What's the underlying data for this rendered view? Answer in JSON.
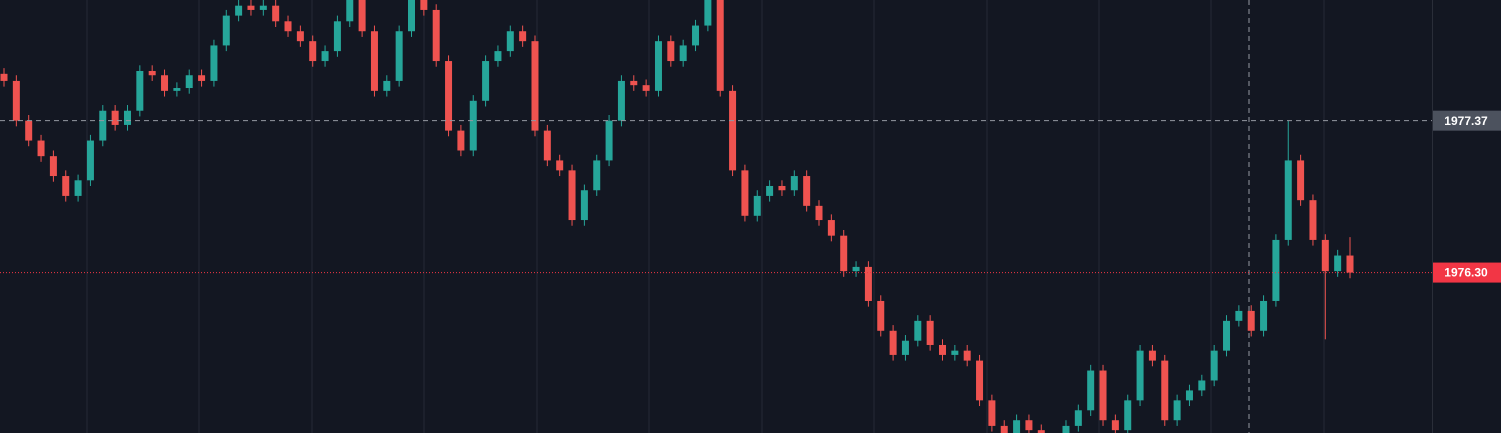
{
  "chart_data": {
    "type": "candlestick",
    "ylim": [
      1975.17,
      1978.22
    ],
    "up_color": "#26a69a",
    "down_color": "#ef5350",
    "crosshair_price": 1977.37,
    "last_price": {
      "value": 1976.3,
      "label": "1976.30"
    },
    "open": [
      1977.7,
      1977.65,
      1977.37,
      1977.23,
      1977.12,
      1976.98,
      1976.84,
      1976.95,
      1977.23,
      1977.44,
      1977.34,
      1977.44,
      1977.72,
      1977.69,
      1977.58,
      1977.6,
      1977.69,
      1977.65,
      1977.9,
      1978.11,
      1978.18,
      1978.15,
      1978.18,
      1978.07,
      1978.0,
      1977.93,
      1977.79,
      1977.86,
      1978.07,
      1978.25,
      1978.0,
      1977.58,
      1977.65,
      1978.0,
      1978.22,
      1978.15,
      1977.79,
      1977.3,
      1977.16,
      1977.51,
      1977.79,
      1977.86,
      1978.0,
      1977.93,
      1977.3,
      1977.09,
      1977.02,
      1976.67,
      1976.88,
      1977.09,
      1977.37,
      1977.65,
      1977.62,
      1977.58,
      1977.93,
      1977.79,
      1977.9,
      1978.04,
      1978.22,
      1977.58,
      1977.02,
      1976.7,
      1976.84,
      1976.91,
      1976.88,
      1976.98,
      1976.77,
      1976.67,
      1976.56,
      1976.31,
      1976.34,
      1976.1,
      1975.89,
      1975.72,
      1975.82,
      1975.96,
      1975.79,
      1975.72,
      1975.75,
      1975.68,
      1975.4,
      1975.22,
      1975.17,
      1975.26,
      1975.19,
      1975.05,
      1975.08,
      1975.22,
      1975.33,
      1975.61,
      1975.26,
      1975.19,
      1975.4,
      1975.75,
      1975.68,
      1975.26,
      1975.4,
      1975.47,
      1975.54,
      1975.75,
      1975.96,
      1976.03,
      1975.89,
      1976.1,
      1976.53,
      1977.09,
      1976.81,
      1976.53,
      1976.31,
      1976.42
    ],
    "high": [
      1977.74,
      1977.69,
      1977.41,
      1977.27,
      1977.16,
      1977.02,
      1976.99,
      1977.27,
      1977.48,
      1977.48,
      1977.48,
      1977.76,
      1977.76,
      1977.73,
      1977.64,
      1977.73,
      1977.73,
      1977.94,
      1978.15,
      1978.22,
      1978.22,
      1978.22,
      1978.22,
      1978.11,
      1978.04,
      1977.97,
      1977.9,
      1978.11,
      1978.29,
      1978.29,
      1978.04,
      1977.69,
      1978.04,
      1978.26,
      1978.26,
      1978.19,
      1977.83,
      1977.34,
      1977.55,
      1977.83,
      1977.9,
      1978.04,
      1978.04,
      1977.97,
      1977.34,
      1977.13,
      1977.06,
      1976.92,
      1977.13,
      1977.41,
      1977.69,
      1977.69,
      1977.66,
      1977.97,
      1977.97,
      1977.94,
      1978.08,
      1978.26,
      1978.26,
      1977.62,
      1977.06,
      1976.88,
      1976.95,
      1976.95,
      1977.02,
      1977.02,
      1976.81,
      1976.71,
      1976.6,
      1976.38,
      1976.38,
      1976.14,
      1975.93,
      1975.86,
      1976.0,
      1976.0,
      1975.83,
      1975.79,
      1975.79,
      1975.72,
      1975.44,
      1975.26,
      1975.3,
      1975.3,
      1975.23,
      1975.12,
      1975.26,
      1975.37,
      1975.65,
      1975.65,
      1975.3,
      1975.44,
      1975.79,
      1975.79,
      1975.72,
      1975.44,
      1975.51,
      1975.58,
      1975.79,
      1976.0,
      1976.07,
      1976.07,
      1976.14,
      1976.57,
      1977.37,
      1977.13,
      1976.85,
      1976.57,
      1976.46,
      1976.55
    ],
    "low": [
      1977.61,
      1977.33,
      1977.19,
      1977.08,
      1976.94,
      1976.8,
      1976.8,
      1976.91,
      1977.19,
      1977.3,
      1977.3,
      1977.4,
      1977.65,
      1977.54,
      1977.54,
      1977.56,
      1977.61,
      1977.61,
      1977.86,
      1978.07,
      1978.11,
      1978.11,
      1978.03,
      1977.96,
      1977.89,
      1977.75,
      1977.75,
      1977.82,
      1978.03,
      1977.96,
      1977.54,
      1977.54,
      1977.61,
      1977.96,
      1978.11,
      1977.75,
      1977.26,
      1977.12,
      1977.12,
      1977.47,
      1977.75,
      1977.82,
      1977.89,
      1977.26,
      1977.05,
      1976.98,
      1976.63,
      1976.63,
      1976.84,
      1977.05,
      1977.33,
      1977.58,
      1977.54,
      1977.54,
      1977.75,
      1977.75,
      1977.86,
      1978.0,
      1977.54,
      1976.98,
      1976.66,
      1976.66,
      1976.8,
      1976.84,
      1976.84,
      1976.73,
      1976.63,
      1976.52,
      1976.27,
      1976.27,
      1976.06,
      1975.85,
      1975.68,
      1975.68,
      1975.78,
      1975.75,
      1975.68,
      1975.68,
      1975.64,
      1975.36,
      1975.18,
      1975.13,
      1975.13,
      1975.15,
      1975.01,
      1975.01,
      1975.04,
      1975.18,
      1975.29,
      1975.22,
      1975.15,
      1975.15,
      1975.36,
      1975.64,
      1975.22,
      1975.22,
      1975.36,
      1975.43,
      1975.5,
      1975.71,
      1975.92,
      1975.85,
      1975.85,
      1976.06,
      1976.49,
      1976.77,
      1976.49,
      1975.83,
      1976.27,
      1976.26
    ],
    "close": [
      1977.65,
      1977.37,
      1977.23,
      1977.12,
      1976.98,
      1976.84,
      1976.95,
      1977.23,
      1977.44,
      1977.34,
      1977.44,
      1977.72,
      1977.69,
      1977.58,
      1977.6,
      1977.69,
      1977.65,
      1977.9,
      1978.11,
      1978.18,
      1978.15,
      1978.18,
      1978.07,
      1978.0,
      1977.93,
      1977.79,
      1977.86,
      1978.07,
      1978.25,
      1978.0,
      1977.58,
      1977.65,
      1978.0,
      1978.22,
      1978.15,
      1977.79,
      1977.3,
      1977.16,
      1977.51,
      1977.79,
      1977.86,
      1978.0,
      1977.93,
      1977.3,
      1977.09,
      1977.02,
      1976.67,
      1976.88,
      1977.09,
      1977.37,
      1977.65,
      1977.62,
      1977.58,
      1977.93,
      1977.79,
      1977.9,
      1978.04,
      1978.22,
      1977.58,
      1977.02,
      1976.7,
      1976.84,
      1976.91,
      1976.88,
      1976.98,
      1976.77,
      1976.67,
      1976.56,
      1976.31,
      1976.34,
      1976.1,
      1975.89,
      1975.72,
      1975.82,
      1975.96,
      1975.79,
      1975.72,
      1975.75,
      1975.68,
      1975.4,
      1975.22,
      1975.17,
      1975.26,
      1975.19,
      1975.05,
      1975.08,
      1975.22,
      1975.33,
      1975.61,
      1975.26,
      1975.19,
      1975.4,
      1975.75,
      1975.68,
      1975.26,
      1975.4,
      1975.47,
      1975.54,
      1975.75,
      1975.96,
      1976.03,
      1975.89,
      1976.1,
      1976.53,
      1977.09,
      1976.81,
      1976.53,
      1976.31,
      1976.42,
      1976.3
    ]
  }
}
